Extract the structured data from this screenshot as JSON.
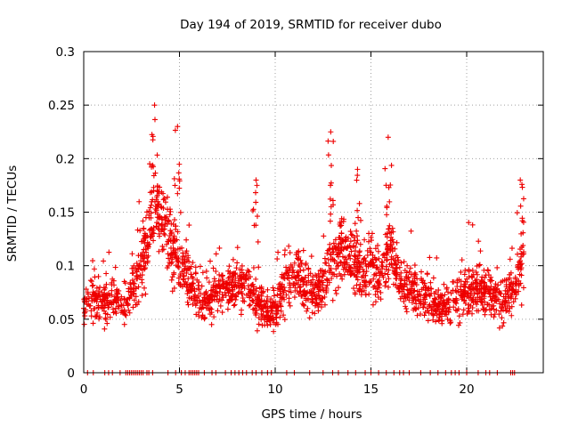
{
  "chart_data": {
    "type": "scatter",
    "title": "Day 194 of 2019, SRMTID for receiver dubo",
    "xlabel": "GPS time / hours",
    "ylabel": "SRMTID / TECUs",
    "xlim": [
      0,
      24
    ],
    "ylim": [
      0,
      0.3
    ],
    "xticks": [
      "0",
      "5",
      "10",
      "15",
      "20"
    ],
    "yticks": [
      "0",
      "0.05",
      "0.1",
      "0.15",
      "0.2",
      "0.25",
      "0.3"
    ],
    "grid": true,
    "marker": "+",
    "marker_color": "#ee0000",
    "series": [
      {
        "name": "SRMTID",
        "trend_x": [
          0,
          0.5,
          1,
          1.5,
          2,
          2.5,
          3,
          3.5,
          4,
          4.5,
          5,
          5.5,
          6,
          6.5,
          7,
          7.5,
          8,
          8.5,
          9,
          9.5,
          10,
          10.5,
          11,
          11.5,
          12,
          12.5,
          13,
          13.5,
          14,
          14.5,
          15,
          15.5,
          16,
          16.5,
          17,
          17.5,
          18,
          18.5,
          19,
          19.5,
          20,
          20.5,
          21,
          21.5,
          22,
          22.5,
          23
        ],
        "trend_y": [
          0.06,
          0.07,
          0.065,
          0.07,
          0.06,
          0.075,
          0.1,
          0.14,
          0.15,
          0.12,
          0.1,
          0.085,
          0.07,
          0.07,
          0.075,
          0.08,
          0.085,
          0.08,
          0.07,
          0.055,
          0.06,
          0.08,
          0.09,
          0.085,
          0.07,
          0.085,
          0.11,
          0.11,
          0.1,
          0.09,
          0.1,
          0.09,
          0.12,
          0.085,
          0.08,
          0.075,
          0.07,
          0.06,
          0.065,
          0.07,
          0.075,
          0.075,
          0.08,
          0.07,
          0.07,
          0.08,
          0.11
        ],
        "peaks": [
          {
            "x": 3.7,
            "y": 0.25
          },
          {
            "x": 4.9,
            "y": 0.23
          },
          {
            "x": 9.0,
            "y": 0.18
          },
          {
            "x": 12.9,
            "y": 0.225
          },
          {
            "x": 14.3,
            "y": 0.19
          },
          {
            "x": 15.9,
            "y": 0.22
          },
          {
            "x": 22.8,
            "y": 0.18
          }
        ],
        "zero_points_x": [
          0.2,
          0.5,
          1.1,
          1.3,
          1.5,
          1.9,
          2.2,
          2.3,
          2.4,
          2.5,
          2.6,
          2.7,
          2.8,
          2.9,
          3.0,
          3.1,
          3.3,
          3.4,
          3.6,
          4.4,
          4.8,
          5.1,
          5.3,
          5.5,
          5.6,
          5.7,
          5.8,
          5.9,
          6.0,
          6.3,
          6.7,
          6.9,
          7.4,
          7.7,
          7.9,
          8.1,
          8.3,
          8.5,
          8.8,
          9.0,
          9.3,
          9.6,
          9.8,
          10.6,
          11.0,
          11.8,
          12.5,
          13.0,
          13.3,
          13.8,
          14.2,
          14.7,
          15.0,
          15.4,
          15.8,
          16.2,
          16.5,
          16.7,
          17.0,
          17.6,
          18.1,
          18.5,
          18.9,
          19.2,
          19.4,
          19.6,
          20.0,
          20.6,
          21.0,
          21.2,
          21.6,
          22.3,
          22.4,
          22.5
        ]
      }
    ]
  }
}
